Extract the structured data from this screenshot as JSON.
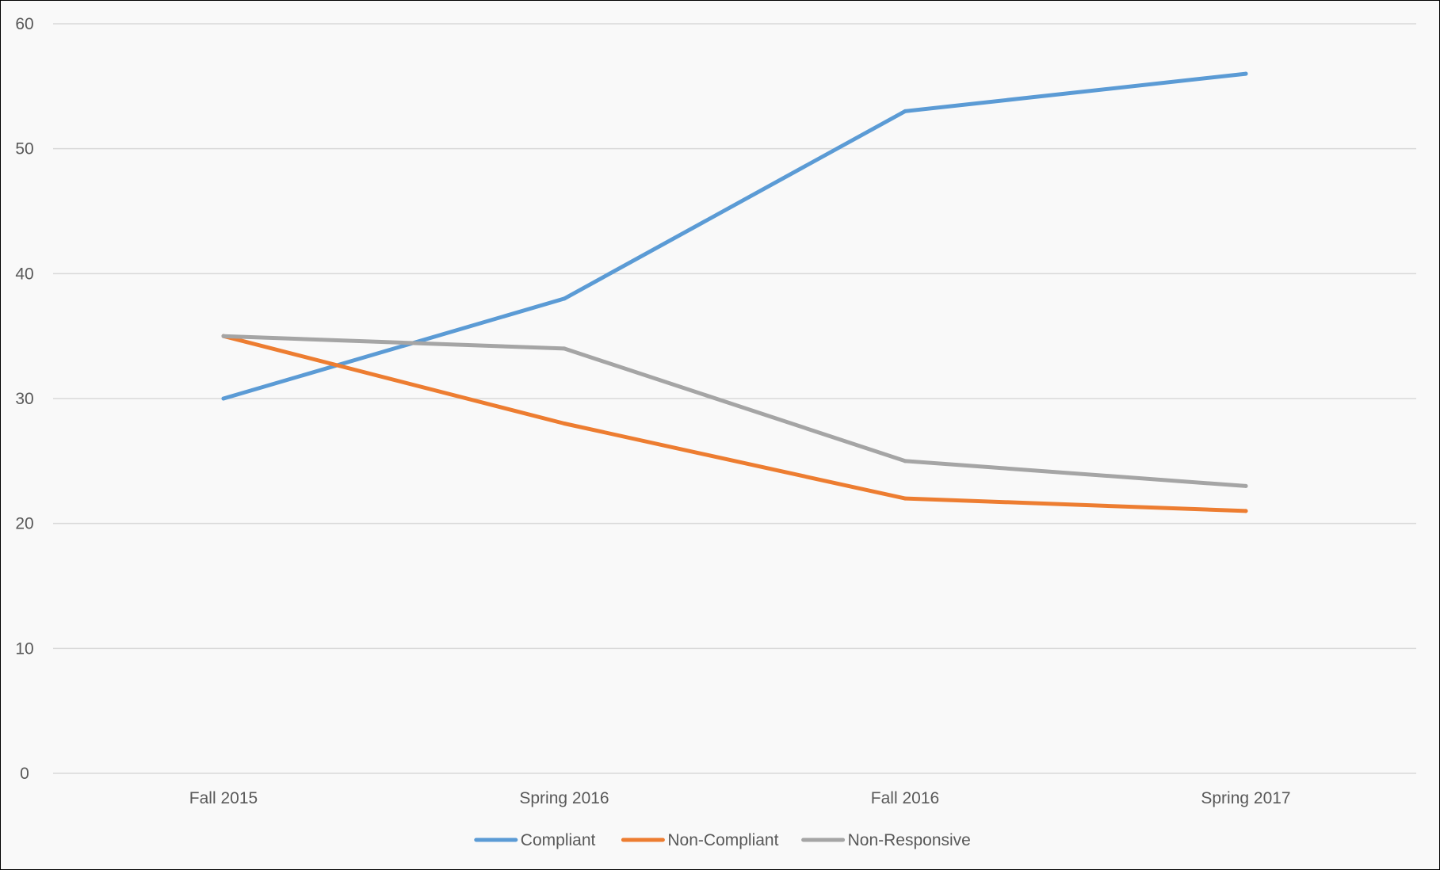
{
  "chart_data": {
    "type": "line",
    "title": "",
    "xlabel": "",
    "ylabel": "",
    "categories": [
      "Fall 2015",
      "Spring 2016",
      "Fall 2016",
      "Spring 2017"
    ],
    "ylim": [
      0,
      60
    ],
    "yticks": [
      0,
      10,
      20,
      30,
      40,
      50,
      60
    ],
    "grid": true,
    "legend_position": "bottom",
    "series": [
      {
        "name": "Compliant",
        "color": "#5b9bd5",
        "values": [
          30,
          38,
          53,
          56
        ]
      },
      {
        "name": "Non-Compliant",
        "color": "#ed7d31",
        "values": [
          35,
          28,
          22,
          21
        ]
      },
      {
        "name": "Non-Responsive",
        "color": "#a5a5a5",
        "values": [
          35,
          34,
          25,
          23
        ]
      }
    ]
  }
}
